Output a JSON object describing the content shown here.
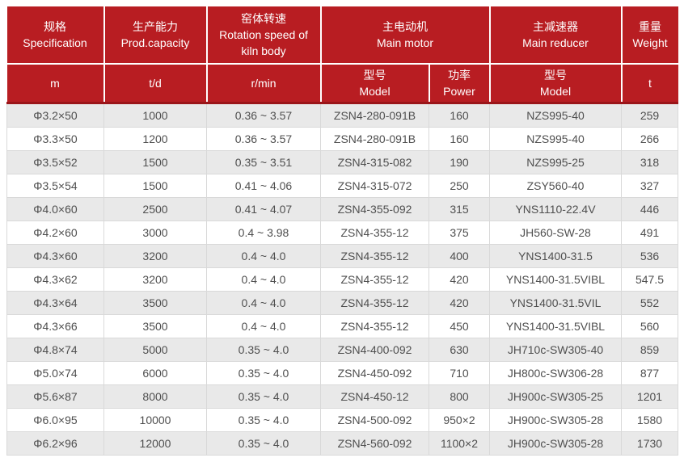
{
  "colors": {
    "header_bg": "#b81d22",
    "header_divider": "#9a1519",
    "row_alt": "#e9e9e9",
    "cell_border": "#d9d9d9",
    "cell_text": "#4f4f4f"
  },
  "header": {
    "spec": {
      "zh": "规格",
      "en": "Specification"
    },
    "capacity": {
      "zh": "生产能力",
      "en": "Prod.capacity"
    },
    "rotation": {
      "zh": "窑体转速",
      "en": "Rotation speed of kiln body"
    },
    "motor": {
      "zh": "主电动机",
      "en": "Main motor"
    },
    "reducer": {
      "zh": "主减速器",
      "en": "Main reducer"
    },
    "weight": {
      "zh": "重量",
      "en": "Weight"
    }
  },
  "subheader": {
    "spec_unit": "m",
    "capacity_unit": "t/d",
    "rotation_unit": "r/min",
    "motor_model": {
      "zh": "型号",
      "en": "Model"
    },
    "motor_power": {
      "zh": "功率",
      "en": "Power"
    },
    "reducer_model": {
      "zh": "型号",
      "en": "Model"
    },
    "weight_unit": "t"
  },
  "rows": [
    [
      "Φ3.2×50",
      "1000",
      "0.36 ~ 3.57",
      "ZSN4-280-091B",
      "160",
      "NZS995-40",
      "259"
    ],
    [
      "Φ3.3×50",
      "1200",
      "0.36 ~ 3.57",
      "ZSN4-280-091B",
      "160",
      "NZS995-40",
      "266"
    ],
    [
      "Φ3.5×52",
      "1500",
      "0.35 ~ 3.51",
      "ZSN4-315-082",
      "190",
      "NZS995-25",
      "318"
    ],
    [
      "Φ3.5×54",
      "1500",
      "0.41 ~ 4.06",
      "ZSN4-315-072",
      "250",
      "ZSY560-40",
      "327"
    ],
    [
      "Φ4.0×60",
      "2500",
      "0.41 ~ 4.07",
      "ZSN4-355-092",
      "315",
      "YNS1110-22.4V",
      "446"
    ],
    [
      "Φ4.2×60",
      "3000",
      "0.4 ~ 3.98",
      "ZSN4-355-12",
      "375",
      "JH560-SW-28",
      "491"
    ],
    [
      "Φ4.3×60",
      "3200",
      "0.4 ~ 4.0",
      "ZSN4-355-12",
      "400",
      "YNS1400-31.5",
      "536"
    ],
    [
      "Φ4.3×62",
      "3200",
      "0.4 ~ 4.0",
      "ZSN4-355-12",
      "420",
      "YNS1400-31.5VIBL",
      "547.5"
    ],
    [
      "Φ4.3×64",
      "3500",
      "0.4 ~ 4.0",
      "ZSN4-355-12",
      "420",
      "YNS1400-31.5VIL",
      "552"
    ],
    [
      "Φ4.3×66",
      "3500",
      "0.4 ~ 4.0",
      "ZSN4-355-12",
      "450",
      "YNS1400-31.5VIBL",
      "560"
    ],
    [
      "Φ4.8×74",
      "5000",
      "0.35 ~ 4.0",
      "ZSN4-400-092",
      "630",
      "JH710c-SW305-40",
      "859"
    ],
    [
      "Φ5.0×74",
      "6000",
      "0.35 ~ 4.0",
      "ZSN4-450-092",
      "710",
      "JH800c-SW306-28",
      "877"
    ],
    [
      "Φ5.6×87",
      "8000",
      "0.35 ~ 4.0",
      "ZSN4-450-12",
      "800",
      "JH900c-SW305-25",
      "1201"
    ],
    [
      "Φ6.0×95",
      "10000",
      "0.35 ~ 4.0",
      "ZSN4-500-092",
      "950×2",
      "JH900c-SW305-28",
      "1580"
    ],
    [
      "Φ6.2×96",
      "12000",
      "0.35 ~ 4.0",
      "ZSN4-560-092",
      "1100×2",
      "JH900c-SW305-28",
      "1730"
    ]
  ]
}
